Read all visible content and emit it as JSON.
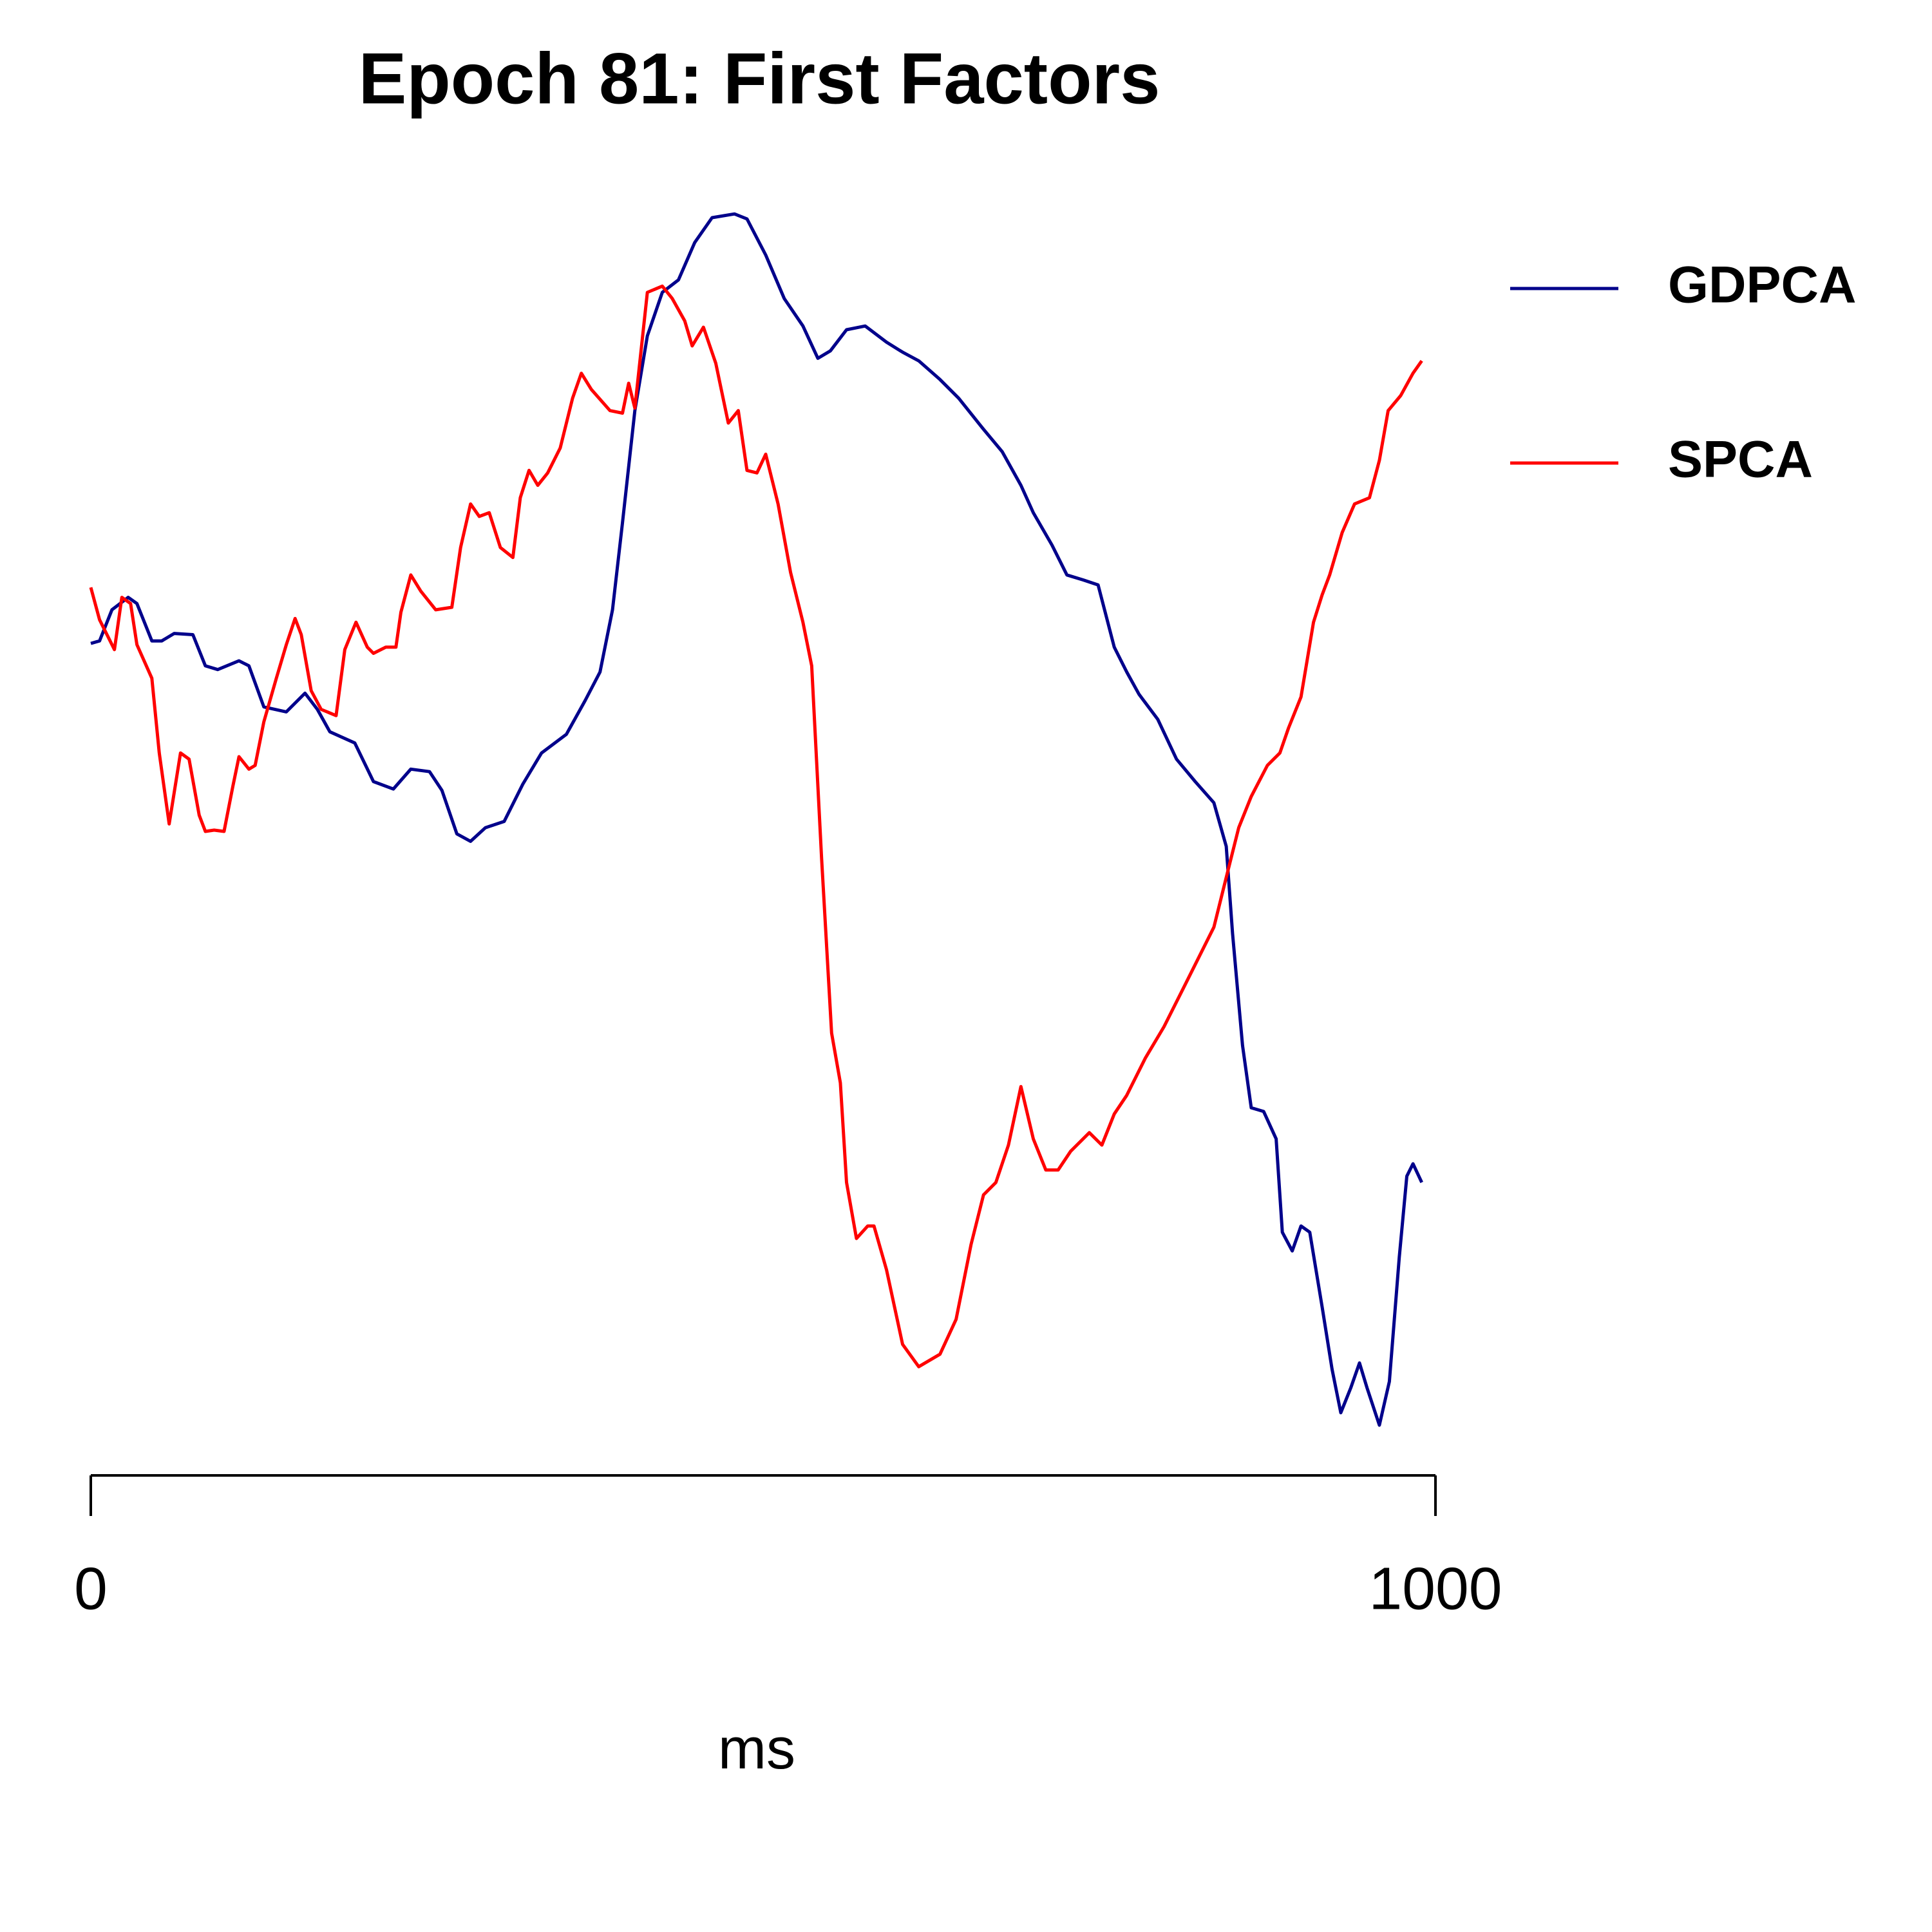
{
  "chart_data": {
    "type": "line",
    "title": "Epoch 81: First Factors",
    "xlabel": "ms",
    "xlim": [
      0,
      1000
    ],
    "xticks": [
      0,
      1000
    ],
    "ylim": [
      0,
      100
    ],
    "legend": "right",
    "series": [
      {
        "name": "GDPCA",
        "color": "#00008b",
        "x": [
          0,
          6.5,
          15.7,
          27.8,
          34.3,
          45.4,
          52.8,
          62.0,
          75.9,
          85.2,
          94.4,
          110.2,
          117.6,
          128.7,
          145.4,
          159.3,
          168.5,
          177.8,
          196.3,
          210.2,
          225.0,
          238.0,
          251.9,
          261.1,
          272.2,
          282.4,
          293.5,
          307.4,
          321.3,
          335.2,
          353.7,
          367.6,
          378.7,
          388.0,
          395.4,
          404.6,
          413.9,
          425.0,
          437.0,
          449.1,
          462.0,
          478.7,
          488.0,
          501.9,
          515.7,
          529.6,
          540.7,
          550.0,
          562.0,
          575.9,
          591.7,
          603.7,
          615.7,
          631.5,
          645.4,
          663.9,
          677.8,
          691.7,
          700.9,
          714.8,
          725.9,
          738.0,
          749.1,
          761.1,
          770.4,
          779.6,
          793.5,
          807.4,
          821.3,
          835.2,
          844.4,
          849.1,
          856.5,
          863.0,
          872.2,
          881.5,
          886.1,
          893.5,
          900.0,
          906.5,
          915.7,
          923.1,
          929.6,
          937.0,
          943.5,
          949.1,
          958.3,
          965.7,
          973.1,
          978.7,
          983.3,
          989.8
        ],
        "values": [
          64.3,
          64.5,
          67,
          68,
          67.5,
          64.5,
          64.5,
          65.1,
          65,
          62.5,
          62.2,
          62.9,
          62.5,
          59.2,
          58.8,
          60.3,
          59,
          57.2,
          56.3,
          53.2,
          52.6,
          54.2,
          54,
          52.5,
          49,
          48.4,
          49.5,
          50,
          53,
          55.5,
          57,
          59.7,
          62,
          67,
          74,
          83,
          89,
          92.5,
          93.5,
          96.5,
          98.5,
          98.8,
          98.4,
          95.5,
          92,
          89.8,
          87.2,
          87.8,
          89.5,
          89.8,
          88.5,
          87.7,
          87,
          85.5,
          84,
          81.5,
          79.7,
          77,
          74.8,
          72.2,
          69.8,
          69.4,
          69,
          64,
          62,
          60.2,
          58.2,
          55,
          53.2,
          51.5,
          48,
          41,
          32,
          27,
          26.7,
          24.5,
          17,
          15.5,
          17.5,
          17,
          11,
          6,
          2.5,
          4.5,
          6.5,
          4.5,
          1.5,
          5,
          15,
          21.5,
          22.5,
          21
        ]
      },
      {
        "name": "SPCA",
        "color": "#ff0000",
        "x": [
          0,
          6.5,
          17.6,
          23.1,
          29.6,
          34.3,
          45.4,
          50.9,
          58.3,
          66.7,
          73.1,
          80.6,
          85.2,
          91.7,
          99.1,
          105.6,
          110.2,
          117.6,
          122.2,
          128.7,
          138.0,
          145.4,
          151.9,
          156.5,
          163.9,
          171.3,
          182.4,
          188.9,
          197.2,
          205.6,
          210.2,
          219.4,
          226.9,
          230.6,
          238.0,
          245.4,
          256.5,
          268.5,
          275.0,
          282.4,
          288.9,
          296.3,
          304.6,
          313.9,
          319.4,
          325.9,
          332.4,
          339.8,
          349.1,
          358.3,
          364.8,
          372.2,
          386.1,
          395.4,
          400.0,
          404.6,
          413.9,
          425.0,
          432.4,
          441.7,
          447.2,
          455.6,
          464.8,
          474.1,
          481.5,
          488.0,
          495.4,
          501.9,
          511.1,
          520.4,
          529.6,
          536.1,
          543.5,
          550.9,
          557.4,
          562.0,
          569.4,
          577.8,
          582.4,
          591.7,
          603.7,
          615.7,
          631.5,
          643.5,
          654.6,
          663.9,
          673.1,
          682.4,
          691.7,
          700.9,
          710.2,
          719.4,
          728.7,
          742.6,
          751.9,
          761.1,
          770.4,
          784.3,
          798.1,
          812.0,
          821.3,
          835.2,
          844.4,
          853.7,
          863.0,
          875.0,
          884.3,
          890.7,
          900.0,
          909.3,
          915.7,
          921.3,
          930.6,
          939.8,
          950.9,
          958.3,
          964.8,
          974.1,
          983.3,
          989.8
        ],
        "values": [
          68.8,
          66.2,
          63.8,
          68,
          67.5,
          64.2,
          61.5,
          55.5,
          49.8,
          55.5,
          55,
          50.5,
          49.2,
          49.3,
          49.2,
          52.8,
          55.2,
          54.2,
          54.5,
          58,
          61.5,
          64.2,
          66.3,
          65,
          60.5,
          59,
          58.5,
          63.8,
          66,
          64,
          63.5,
          64,
          64,
          66.8,
          69.8,
          68.5,
          67,
          67.2,
          72,
          75.5,
          74.5,
          74.8,
          72,
          71.2,
          76,
          78.2,
          77,
          78,
          80,
          84,
          86,
          84.7,
          83,
          82.8,
          85.2,
          83.2,
          92.5,
          93,
          92,
          90.2,
          88.2,
          89.7,
          86.8,
          82,
          83,
          78.2,
          78,
          79.5,
          75.5,
          70,
          66,
          62.5,
          47,
          33,
          29,
          21,
          16.5,
          17.5,
          17.5,
          14,
          8,
          6.2,
          7.2,
          10,
          16,
          20,
          21,
          24,
          28.7,
          24.5,
          22,
          22,
          23.5,
          25,
          24,
          26.5,
          28,
          31,
          33.5,
          36.5,
          38.5,
          41.5,
          45.5,
          49.5,
          52,
          54.5,
          55.5,
          57.5,
          60,
          66,
          68.2,
          69.8,
          73.2,
          75.5,
          76,
          79,
          83,
          84.2,
          86,
          87
        ]
      }
    ]
  }
}
